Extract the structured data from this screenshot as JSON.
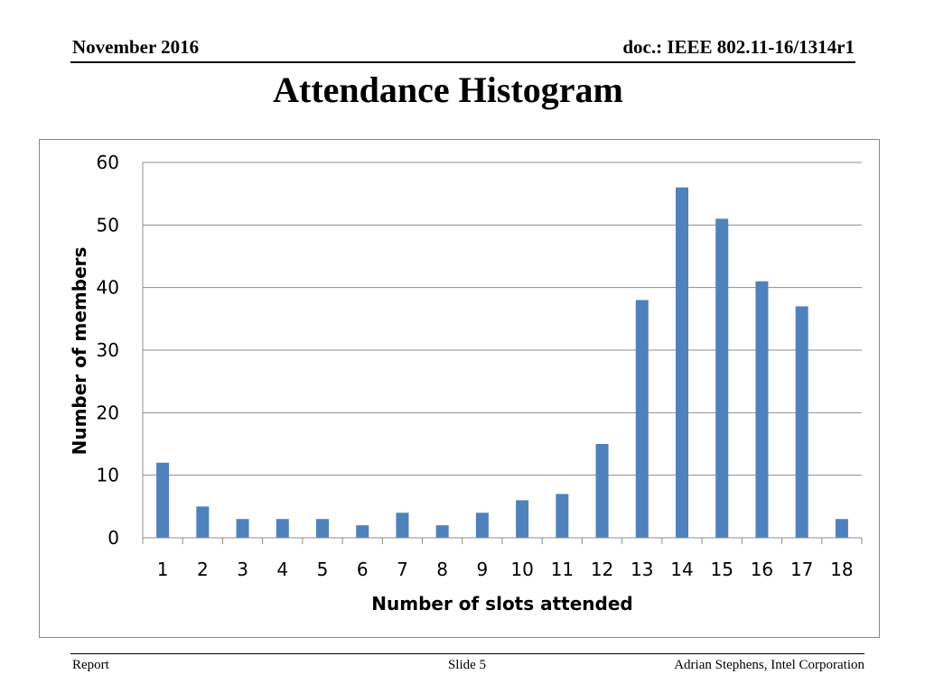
{
  "header": {
    "date": "November 2016",
    "doc": "doc.: IEEE 802.11-16/1314r1"
  },
  "slide_title": "Attendance Histogram",
  "footer": {
    "left": "Report",
    "center": "Slide 5",
    "right": "Adrian Stephens, Intel Corporation"
  },
  "chart_data": {
    "type": "bar",
    "title": "",
    "categories": [
      "1",
      "2",
      "3",
      "4",
      "5",
      "6",
      "7",
      "8",
      "9",
      "10",
      "11",
      "12",
      "13",
      "14",
      "15",
      "16",
      "17",
      "18"
    ],
    "values": [
      12,
      5,
      3,
      3,
      3,
      2,
      4,
      2,
      4,
      6,
      7,
      15,
      38,
      56,
      51,
      41,
      37,
      3
    ],
    "xlabel": "Number of slots attended",
    "ylabel": "Number of members",
    "ylim": [
      0,
      60
    ],
    "yticks": [
      0,
      10,
      20,
      30,
      40,
      50,
      60
    ],
    "grid": true,
    "legend": "none",
    "bar_color": "#4F81BD",
    "grid_color": "#8c8c8c"
  }
}
